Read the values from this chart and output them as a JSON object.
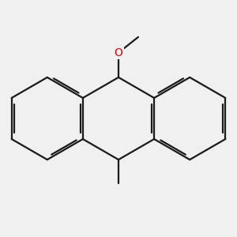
{
  "background_color": "#f0f0f0",
  "bond_color": "#1a1a1a",
  "oxygen_color": "#cc0000",
  "bond_lw": 1.6,
  "dbo": 0.055,
  "trim": 0.15,
  "figsize": [
    3.0,
    3.0
  ],
  "dpi": 100,
  "o_label": "O"
}
